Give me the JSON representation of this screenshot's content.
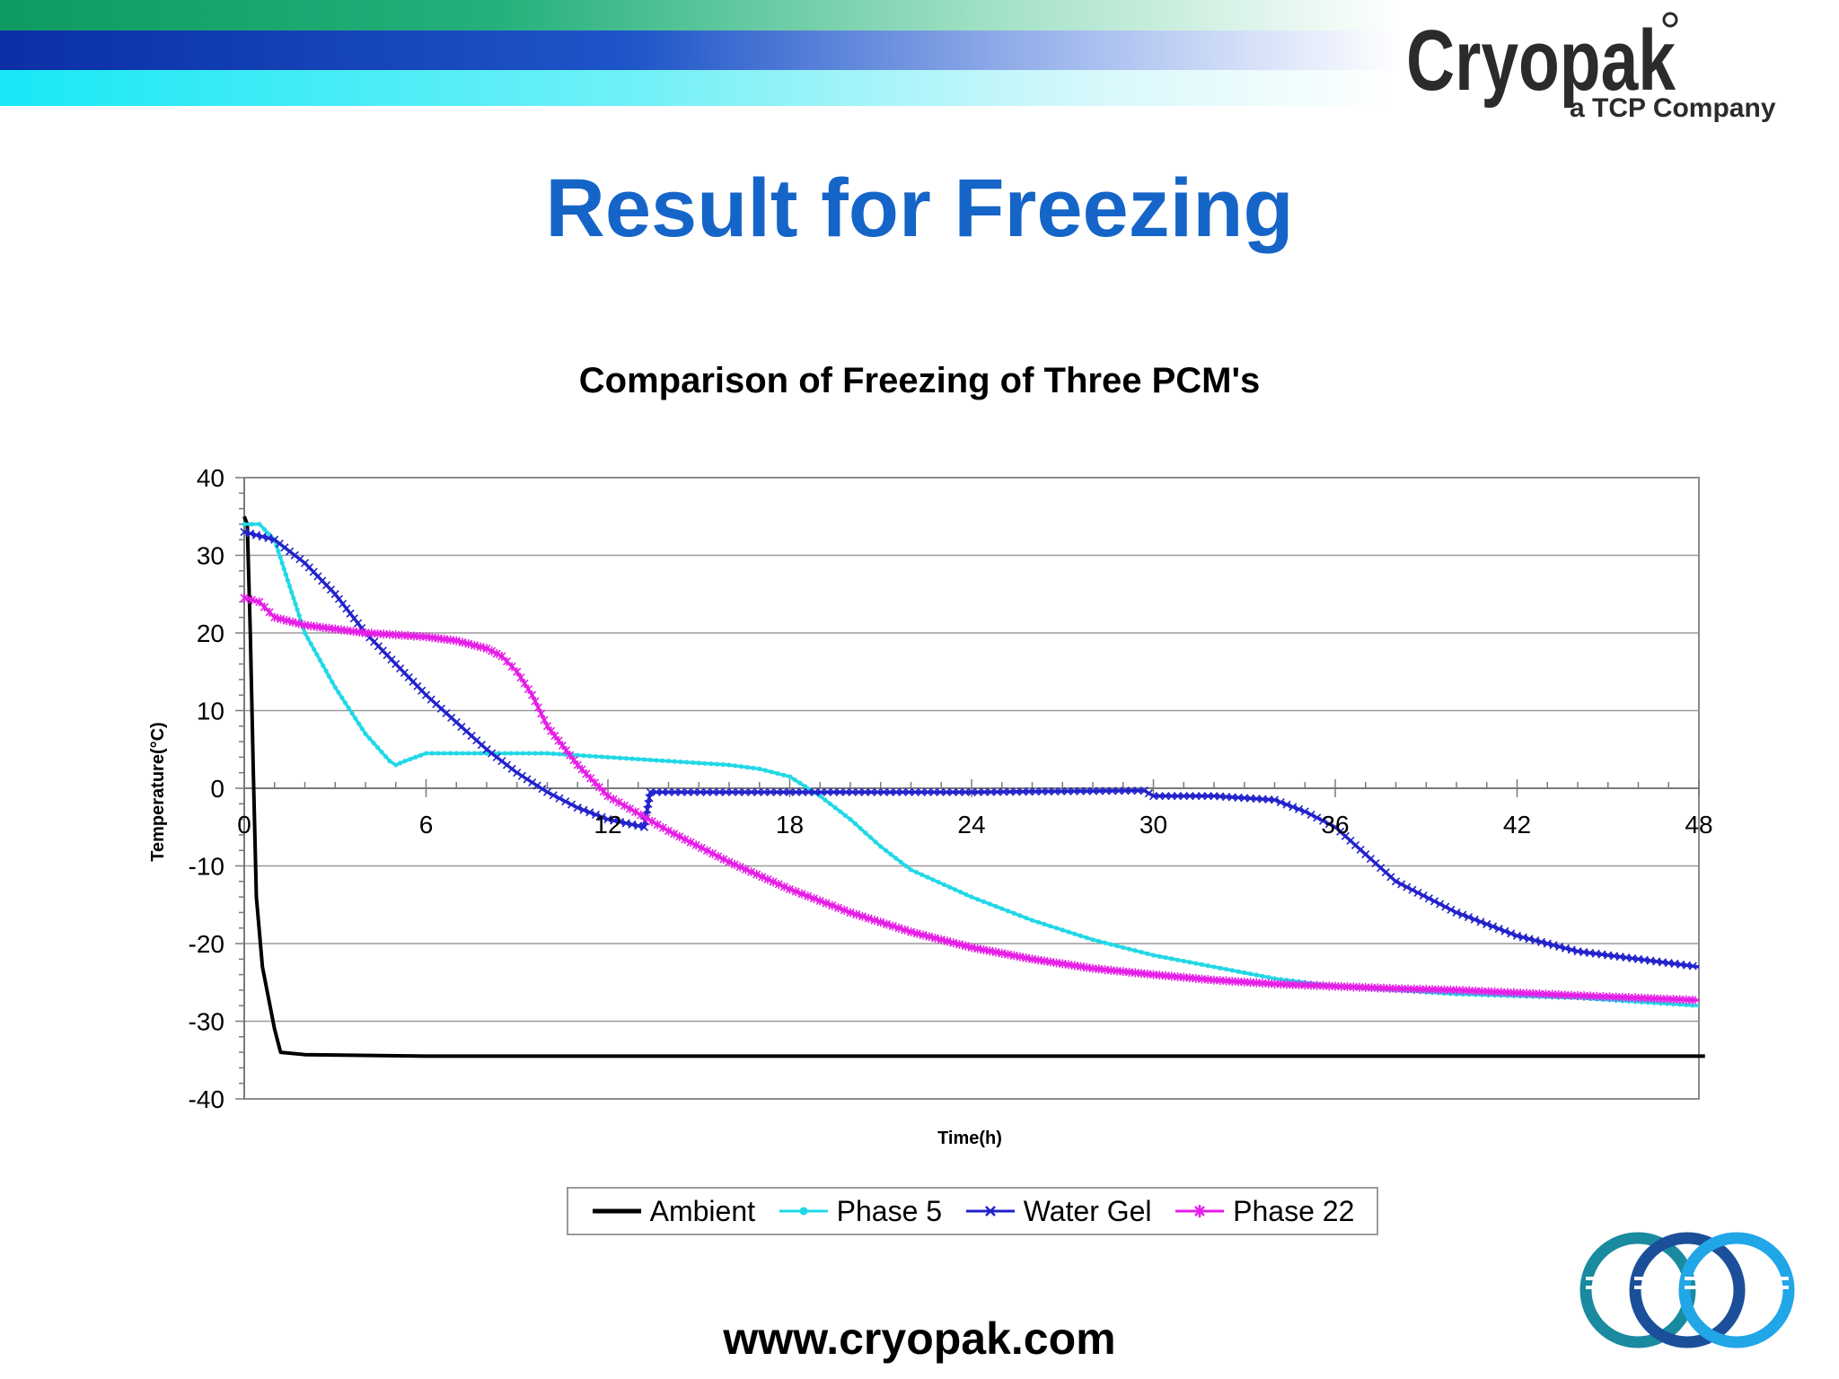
{
  "slide": {
    "title": "Result for Freezing",
    "footer": "www.cryopak.com"
  },
  "brand": {
    "name": "Cryopak",
    "tagline": "a TCP Company",
    "colors": {
      "title_blue": "#1565c8",
      "logo_dark": "#2b2b2b"
    }
  },
  "chart_data": {
    "type": "line",
    "title": "Comparison of Freezing of Three PCM's",
    "xlabel": "Time(h)",
    "ylabel": "Temperature(°C)",
    "xlim": [
      0,
      48
    ],
    "ylim": [
      -40,
      40
    ],
    "xticks": [
      0,
      6,
      12,
      18,
      24,
      30,
      36,
      42,
      48
    ],
    "yticks": [
      40,
      30,
      20,
      10,
      0,
      -10,
      -20,
      -30,
      -40
    ],
    "grid": true,
    "legend_position": "bottom",
    "series": [
      {
        "name": "Ambient",
        "color": "#000000",
        "marker": "none",
        "x": [
          0,
          0.1,
          0.2,
          0.3,
          0.4,
          0.6,
          0.8,
          1.0,
          1.2,
          2,
          6,
          12,
          18,
          24,
          30,
          36,
          42,
          48.2
        ],
        "y": [
          35,
          34,
          20,
          2,
          -14,
          -23,
          -27,
          -31,
          -34,
          -34.3,
          -34.5,
          -34.5,
          -34.5,
          -34.5,
          -34.5,
          -34.5,
          -34.5,
          -34.5
        ]
      },
      {
        "name": "Phase 5",
        "color": "#22d8e6",
        "marker": "dot",
        "x": [
          0,
          0.5,
          1,
          1.5,
          2,
          3,
          4,
          4.8,
          5,
          5.3,
          6,
          8,
          10,
          12,
          14,
          16,
          17,
          18,
          19,
          20,
          21,
          22,
          24,
          26,
          28,
          30,
          32,
          34,
          36,
          38,
          40,
          44,
          48
        ],
        "y": [
          34,
          34,
          32,
          26,
          20,
          13,
          7,
          3.5,
          3,
          3.5,
          4.5,
          4.5,
          4.5,
          4,
          3.5,
          3,
          2.5,
          1.5,
          -1,
          -4,
          -7.5,
          -10.5,
          -14,
          -17,
          -19.5,
          -21.5,
          -23,
          -24.5,
          -25.5,
          -26,
          -26.5,
          -27,
          -28
        ]
      },
      {
        "name": "Water Gel",
        "color": "#2222cc",
        "marker": "x",
        "x": [
          0,
          1,
          2,
          3,
          4,
          5,
          6,
          7,
          8,
          9,
          10,
          11,
          12,
          13.2,
          13.4,
          14,
          18,
          24,
          29.7,
          30,
          32,
          34,
          35,
          36,
          37,
          38,
          40,
          42,
          44,
          46,
          48
        ],
        "y": [
          33,
          32,
          29,
          25,
          20,
          16,
          12,
          8.5,
          5,
          2,
          -0.5,
          -2.5,
          -4,
          -5,
          -0.5,
          -0.5,
          -0.5,
          -0.5,
          -0.3,
          -1,
          -1,
          -1.5,
          -3,
          -5,
          -8.5,
          -12,
          -16,
          -19,
          -21,
          -22,
          -23
        ]
      },
      {
        "name": "Phase 22",
        "color": "#e61ee6",
        "marker": "star",
        "x": [
          0,
          0.5,
          1,
          2,
          4,
          6,
          7,
          8,
          8.5,
          9,
          9.5,
          10,
          11,
          12,
          14,
          16,
          18,
          20,
          22,
          24,
          26,
          28,
          30,
          32,
          34,
          36,
          38,
          40,
          44,
          48
        ],
        "y": [
          24.5,
          24,
          22,
          21,
          20,
          19.5,
          19,
          18,
          17,
          15,
          12,
          8,
          3,
          -1,
          -5.5,
          -9.5,
          -13,
          -16,
          -18.5,
          -20.5,
          -22,
          -23.2,
          -24,
          -24.7,
          -25.2,
          -25.5,
          -25.8,
          -26,
          -26.7,
          -27.3
        ]
      }
    ]
  }
}
